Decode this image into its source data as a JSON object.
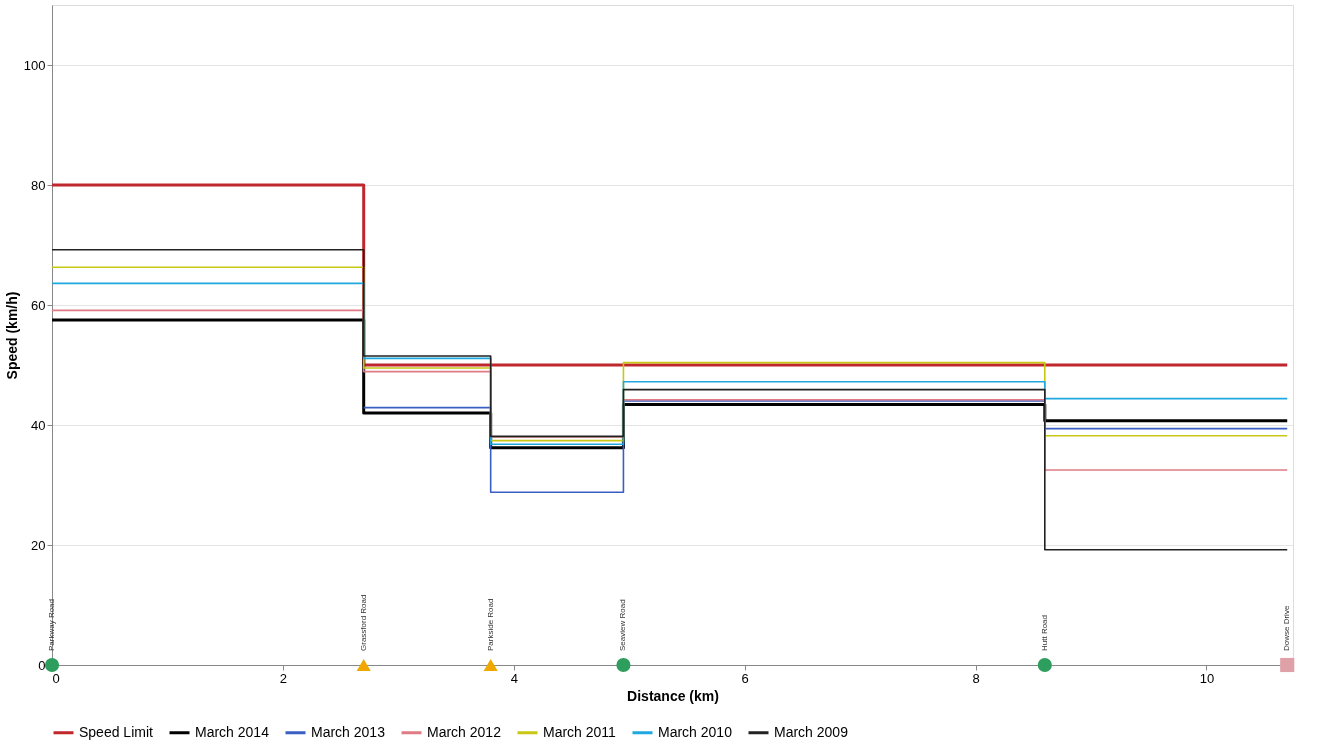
{
  "chart_data": {
    "type": "step",
    "xlabel": "Distance (km)",
    "ylabel": "Speed (km/h)",
    "x": [
      0,
      2.7,
      3.8,
      4.95,
      8.6,
      10.7
    ],
    "series": [
      {
        "name": "Speed Limit",
        "color": "#c0272d",
        "values": [
          80,
          50,
          50,
          50,
          50,
          50
        ]
      },
      {
        "name": "March 2014",
        "color": "#000000",
        "values": [
          57.5,
          42.0,
          36.2,
          43.4,
          40.7,
          40.7
        ]
      },
      {
        "name": "March 2013",
        "color": "#3a5fc4",
        "values": [
          null,
          42.9,
          28.8,
          44.0,
          39.4,
          39.4
        ]
      },
      {
        "name": "March 2012",
        "color": "#e07b85",
        "values": [
          59.1,
          48.9,
          38.0,
          44.2,
          32.5,
          32.5
        ]
      },
      {
        "name": "March 2011",
        "color": "#c8c814",
        "values": [
          66.3,
          49.5,
          37.4,
          50.4,
          38.2,
          38.2
        ]
      },
      {
        "name": "March 2010",
        "color": "#1fa8e0",
        "values": [
          63.6,
          51.1,
          36.8,
          47.2,
          44.4,
          44.4
        ]
      },
      {
        "name": "March 2009",
        "color": "#222222",
        "values": [
          69.2,
          51.5,
          38.1,
          45.9,
          19.2,
          19.2
        ]
      },
      {
        "type": "scatter",
        "marker": "circle",
        "color": "#2e9e5e",
        "x": [
          0,
          4.95,
          8.6
        ],
        "values": [
          0,
          0,
          0
        ]
      },
      {
        "type": "scatter",
        "marker": "triangle",
        "color": "#f0a800",
        "x": [
          2.7,
          3.8
        ],
        "values": [
          0,
          0
        ]
      },
      {
        "type": "scatter",
        "marker": "square",
        "color": "#e0a0a8",
        "x": [
          10.7
        ],
        "values": [
          0
        ]
      }
    ],
    "annotations": [
      {
        "text": "Parkway Road",
        "x": 0,
        "y": 0
      },
      {
        "text": "Grassford Road",
        "x": 2.7,
        "y": 0
      },
      {
        "text": "Parkside Road",
        "x": 3.8,
        "y": 0
      },
      {
        "text": "Seaview Road",
        "x": 4.95,
        "y": 0
      },
      {
        "text": "Hutt Road",
        "x": 8.6,
        "y": 0
      },
      {
        "text": "Dowse Drive",
        "x": 10.7,
        "y": 0
      }
    ],
    "xlim": [
      0,
      10.75
    ],
    "xticks": [
      0,
      2,
      4,
      6,
      8,
      10
    ],
    "ylim": [
      0,
      110
    ],
    "yticks": [
      0,
      20,
      40,
      60,
      80,
      100
    ],
    "grid": "y",
    "legend": "bottom"
  }
}
